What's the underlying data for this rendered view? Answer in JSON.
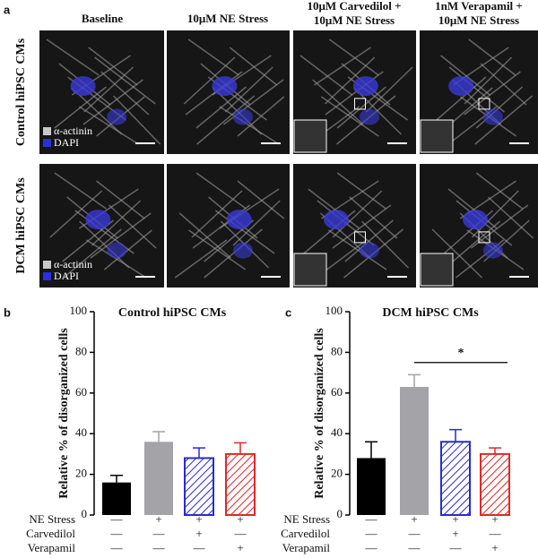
{
  "panel_a": {
    "label": "a",
    "columns": [
      [
        "Baseline"
      ],
      [
        "10μM NE Stress"
      ],
      [
        "10μM Carvedilol +",
        "10μM NE Stress"
      ],
      [
        "1nM Verapamil +",
        "10μM NE Stress"
      ]
    ],
    "rows": [
      "Control hiPSC CMs",
      "DCM  hiPSC CMs"
    ],
    "legend": [
      "α-actinin",
      "DAPI"
    ]
  },
  "chart_data": [
    {
      "type": "bar",
      "panel_label": "b",
      "title": "Control hiPSC CMs",
      "y_label": "Relative % of disorganized cells",
      "values": [
        16,
        36,
        28,
        30
      ],
      "errors": [
        3.5,
        5,
        5,
        5.5
      ],
      "colors": [
        "#000000",
        "#a3a3a8",
        "#2a2ad0",
        "#e02828"
      ],
      "hatched": [
        false,
        false,
        true,
        true
      ],
      "ylim": [
        0,
        100
      ],
      "yticks": [
        0,
        20,
        40,
        60,
        80,
        100
      ],
      "conditions": [
        {
          "name": "NE Stress",
          "marks": [
            "—",
            "+",
            "+",
            "+"
          ]
        },
        {
          "name": "Carvedilol",
          "marks": [
            "—",
            "—",
            "+",
            "—"
          ]
        },
        {
          "name": "Verapamil",
          "marks": [
            "—",
            "—",
            "—",
            "+"
          ]
        }
      ]
    },
    {
      "type": "bar",
      "panel_label": "c",
      "title": "DCM hiPSC CMs",
      "y_label": "Relative % of disorganized cells",
      "values": [
        28,
        63,
        36,
        30
      ],
      "errors": [
        8,
        6,
        6,
        3
      ],
      "colors": [
        "#000000",
        "#a3a3a8",
        "#2a2ad0",
        "#e02828"
      ],
      "hatched": [
        false,
        false,
        true,
        true
      ],
      "ylim": [
        0,
        100
      ],
      "yticks": [
        0,
        20,
        40,
        60,
        80,
        100
      ],
      "significance": {
        "label": "*",
        "value": 75
      },
      "conditions": [
        {
          "name": "NE Stress",
          "marks": [
            "—",
            "+",
            "+",
            "+"
          ]
        },
        {
          "name": "Carvedilol",
          "marks": [
            "—",
            "—",
            "+",
            "—"
          ]
        },
        {
          "name": "Verapamil",
          "marks": [
            "—",
            "—",
            "—",
            "+"
          ]
        }
      ]
    }
  ]
}
